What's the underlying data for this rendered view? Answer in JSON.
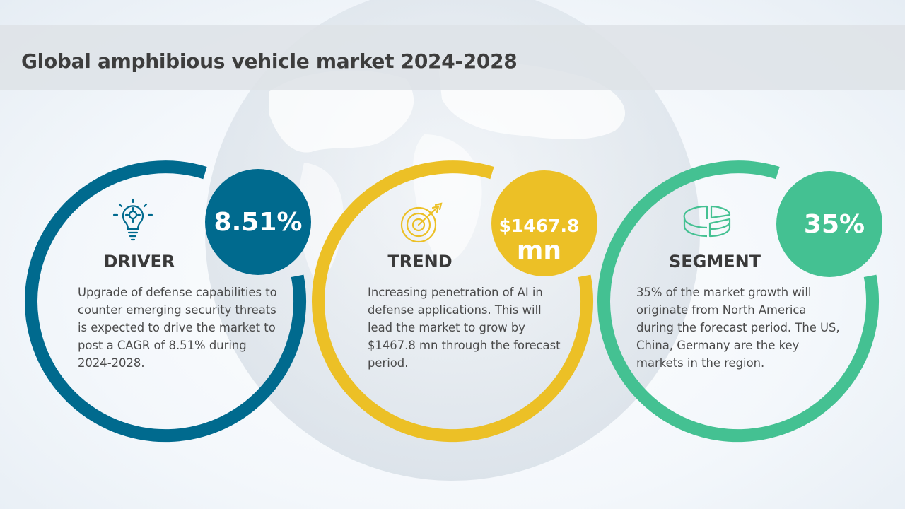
{
  "title": "Global amphibious vehicle market 2024-2028",
  "colors": {
    "driver": "#006a8e",
    "trend": "#ecc026",
    "segment": "#44c192"
  },
  "cards": [
    {
      "key": "driver",
      "icon": "lightbulb-gear-icon",
      "stat": "8.51%",
      "heading": "DRIVER",
      "description": "Upgrade of defense capabilities to counter emerging security threats is expected to drive the market to post a CAGR of 8.51% during 2024-2028."
    },
    {
      "key": "trend",
      "icon": "target-arrow-icon",
      "stat_line1": "$1467.8",
      "stat_line2": "mn",
      "heading": "TREND",
      "description": "Increasing penetration of AI in defense applications. This will lead the market to grow by $1467.8 mn through the forecast period."
    },
    {
      "key": "segment",
      "icon": "pie-chart-icon",
      "stat": "35%",
      "heading": "SEGMENT",
      "description": "35% of the market growth will originate from North America during the forecast period. The US, China, Germany are the key markets in the region."
    }
  ]
}
